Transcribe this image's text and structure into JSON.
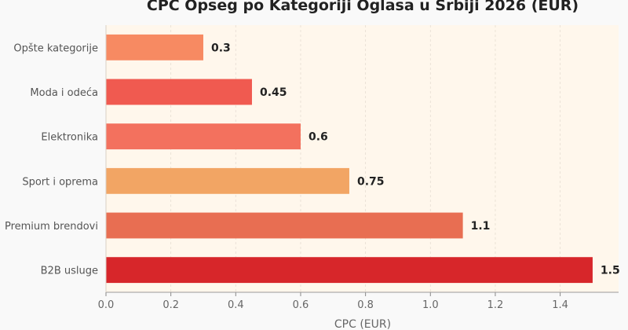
{
  "chart_data": {
    "type": "bar",
    "orientation": "horizontal",
    "title": "CPC Opseg po Kategoriji Oglasa u Srbiji 2026 (EUR)",
    "xlabel": "CPC (EUR)",
    "ylabel": "",
    "categories": [
      "Opšte kategorije",
      "Moda i odeća",
      "Elektronika",
      "Sport i oprema",
      "Premium brendovi",
      "B2B usluge"
    ],
    "values": [
      0.3,
      0.45,
      0.6,
      0.75,
      1.1,
      1.5
    ],
    "value_labels": [
      "0.3",
      "0.45",
      "0.6",
      "0.75",
      "1.1",
      "1.5"
    ],
    "colors": [
      "#f78a62",
      "#f05a50",
      "#f3715e",
      "#f2a564",
      "#e86e52",
      "#d7262a"
    ],
    "xlim": [
      0,
      1.58
    ],
    "xticks": [
      0.0,
      0.2,
      0.4,
      0.6,
      0.8,
      1.0,
      1.2,
      1.4
    ],
    "xtick_labels": [
      "0.0",
      "0.2",
      "0.4",
      "0.6",
      "0.8",
      "1.0",
      "1.2",
      "1.4"
    ],
    "grid": true,
    "plot_background": "#fff7ec",
    "figure_background": "#f9f9f9"
  }
}
